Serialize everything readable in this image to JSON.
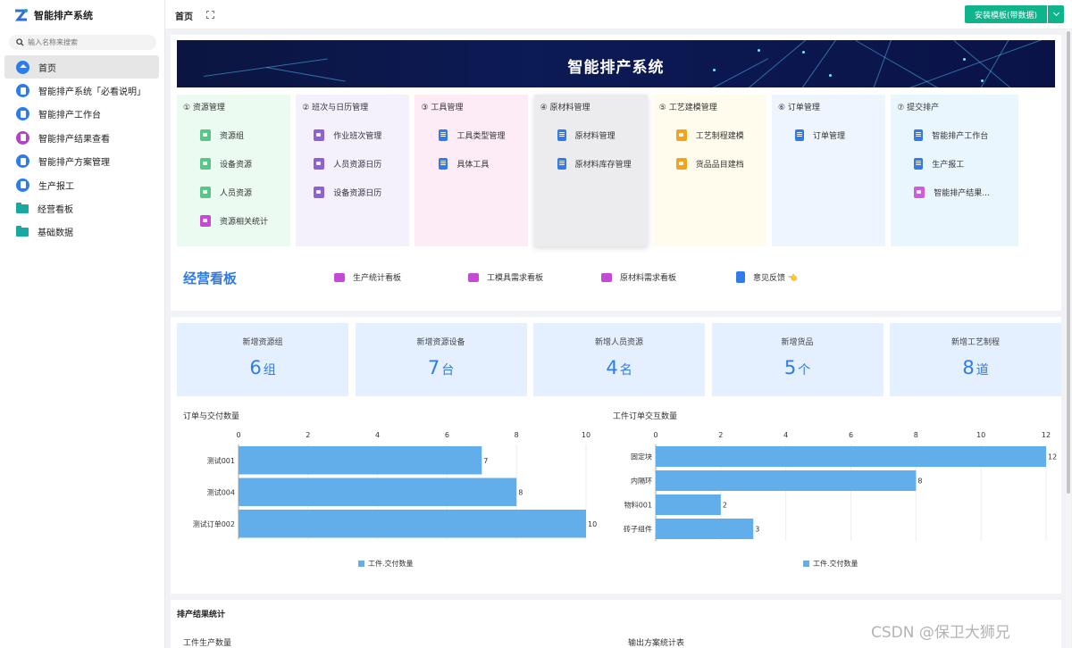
{
  "app": {
    "title": "智能排产系统"
  },
  "search": {
    "placeholder": "输入名称来搜索"
  },
  "sidebar": {
    "items": [
      {
        "label": "首页",
        "icon": "home-icon",
        "active": true
      },
      {
        "label": "智能排产系统「必看说明」",
        "icon": "doc-icon"
      },
      {
        "label": "智能排产工作台",
        "icon": "doc-icon"
      },
      {
        "label": "智能排产结果查看",
        "icon": "monitor-icon"
      },
      {
        "label": "智能排产方案管理",
        "icon": "doc-icon"
      },
      {
        "label": "生产报工",
        "icon": "doc-icon"
      },
      {
        "label": "经营看板",
        "icon": "folder-icon"
      },
      {
        "label": "基础数据",
        "icon": "folder-icon"
      }
    ]
  },
  "topbar": {
    "tab_label": "首页",
    "template_button": "安装模板(带数据)"
  },
  "banner": {
    "title": "智能排产系统"
  },
  "modules": [
    {
      "title": "① 资源管理",
      "bg": "#ecfbf1",
      "items": [
        "资源组",
        "设备资源",
        "人员资源",
        "资源相关统计"
      ]
    },
    {
      "title": "② 班次与日历管理",
      "bg": "#f4f1fd",
      "items": [
        "作业班次管理",
        "人员资源日历",
        "设备资源日历"
      ]
    },
    {
      "title": "③ 工具管理",
      "bg": "#fdebf6",
      "items": [
        "工具类型管理",
        "具体工具"
      ]
    },
    {
      "title": "④ 原材料管理",
      "bg": "#ececef",
      "items": [
        "原材料管理",
        "原材料库存管理"
      ]
    },
    {
      "title": "⑤ 工艺建模管理",
      "bg": "#fffcee",
      "items": [
        "工艺制程建模",
        "货品品目建档"
      ]
    },
    {
      "title": "⑥ 订单管理",
      "bg": "#eef5fe",
      "items": [
        "订单管理"
      ]
    },
    {
      "title": "⑦ 提交排产",
      "bg": "#eaf6fd",
      "items": [
        "智能排产工作台",
        "生产报工",
        "智能排产结果..."
      ]
    }
  ],
  "kanban": {
    "title": "经营看板",
    "links": [
      "生产统计看板",
      "工模具需求看板",
      "原材料需求看板",
      "意见反馈 👈"
    ]
  },
  "stats": [
    {
      "label": "新增资源组",
      "value": "6",
      "unit": "组"
    },
    {
      "label": "新增资源设备",
      "value": "7",
      "unit": "台"
    },
    {
      "label": "新增人员资源",
      "value": "4",
      "unit": "名"
    },
    {
      "label": "新增货品",
      "value": "5",
      "unit": "个"
    },
    {
      "label": "新增工艺制程",
      "value": "8",
      "unit": "道"
    }
  ],
  "chart_data": [
    {
      "type": "bar",
      "orientation": "horizontal",
      "title": "订单与交付数量",
      "categories": [
        "测试001",
        "测试004",
        "测试订单002"
      ],
      "series": [
        {
          "name": "工件.交付数量",
          "values": [
            7,
            8,
            10
          ],
          "color": "#62aeea"
        }
      ],
      "xlim": [
        0,
        10
      ],
      "ticks": [
        0,
        2,
        4,
        6,
        8,
        10
      ],
      "legend": "bottom"
    },
    {
      "type": "bar",
      "orientation": "horizontal",
      "title": "工件订单交互数量",
      "categories": [
        "固定块",
        "内隔环",
        "物料001",
        "砖子组件"
      ],
      "series": [
        {
          "name": "工件.交付数量",
          "values": [
            12,
            8,
            2,
            3
          ],
          "color": "#62aeea"
        }
      ],
      "xlim": [
        0,
        12
      ],
      "ticks": [
        0,
        2,
        4,
        6,
        8,
        10,
        12
      ],
      "legend": "bottom"
    }
  ],
  "results": {
    "title": "排产结果统计",
    "left_label": "工件生产数量",
    "right_label": "输出方案统计表"
  },
  "watermark": "CSDN @保卫大狮兄"
}
